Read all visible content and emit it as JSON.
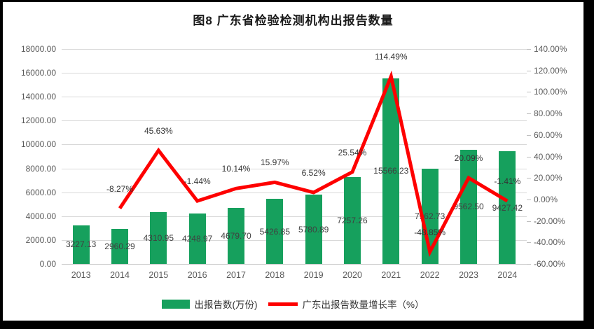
{
  "title": "图8  广东省检验检测机构出报告数量",
  "legend": [
    {
      "label": "出报告数(万份)",
      "type": "bar-swatch",
      "color": "#16a05d"
    },
    {
      "label": "广东出报告数量增长率（%）",
      "type": "line-swatch",
      "color": "#fe0000"
    }
  ],
  "chart_data": {
    "type": "bar+line combo",
    "title": "图8  广东省检验检测机构出报告数量",
    "categories": [
      "2013",
      "2014",
      "2015",
      "2016",
      "2017",
      "2018",
      "2019",
      "2020",
      "2021",
      "2022",
      "2023",
      "2024"
    ],
    "series": [
      {
        "name": "出报告数(万份)",
        "type": "bar",
        "axis": "left",
        "color": "#16a05d",
        "values": [
          3227.13,
          2960.29,
          4310.95,
          4248.97,
          4679.7,
          5426.85,
          5780.89,
          7257.26,
          15566.23,
          7962.73,
          9562.5,
          9427.42
        ],
        "labels": [
          "3227.13",
          "2960.29",
          "4310.95",
          "4248.97",
          "4679.70",
          "5426.85",
          "5780.89",
          "7257.26",
          "15566.23",
          "7962.73",
          "9562.50",
          "9427.42"
        ]
      },
      {
        "name": "广东出报告数量增长率（%）",
        "type": "line",
        "axis": "right",
        "color": "#fe0000",
        "values": [
          null,
          -8.27,
          45.63,
          -1.44,
          10.14,
          15.97,
          6.52,
          25.54,
          114.49,
          -48.85,
          20.09,
          -1.41
        ],
        "labels": [
          "",
          "-8.27%",
          "45.63%",
          "-1.44%",
          "10.14%",
          "15.97%",
          "6.52%",
          "25.54%",
          "114.49%",
          "-48.85%",
          "20.09%",
          "-1.41%"
        ]
      }
    ],
    "left_axis": {
      "min": 0,
      "max": 18000,
      "step": 2000,
      "tick_labels": [
        "0.00",
        "2000.00",
        "4000.00",
        "6000.00",
        "8000.00",
        "10000.00",
        "12000.00",
        "14000.00",
        "16000.00",
        "18000.00"
      ]
    },
    "right_axis": {
      "min": -60,
      "max": 140,
      "step": 20,
      "tick_labels": [
        "-60.00%",
        "-40.00%",
        "-20.00%",
        "0.00%",
        "20.00%",
        "40.00%",
        "60.00%",
        "80.00%",
        "100.00%",
        "120.00%",
        "140.00%"
      ]
    },
    "grid": "horizontal",
    "legend_position": "bottom"
  }
}
